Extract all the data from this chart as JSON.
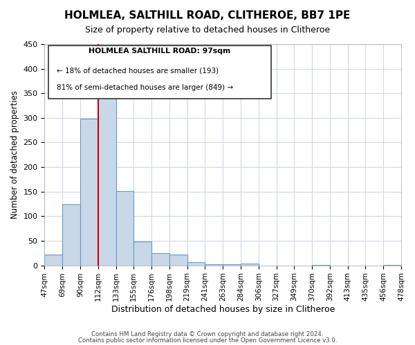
{
  "title": "HOLMLEA, SALTHILL ROAD, CLITHEROE, BB7 1PE",
  "subtitle": "Size of property relative to detached houses in Clitheroe",
  "xlabel": "Distribution of detached houses by size in Clitheroe",
  "ylabel": "Number of detached properties",
  "bin_labels": [
    "47sqm",
    "69sqm",
    "90sqm",
    "112sqm",
    "133sqm",
    "155sqm",
    "176sqm",
    "198sqm",
    "219sqm",
    "241sqm",
    "263sqm",
    "284sqm",
    "306sqm",
    "327sqm",
    "349sqm",
    "370sqm",
    "392sqm",
    "413sqm",
    "435sqm",
    "456sqm",
    "478sqm"
  ],
  "bar_heights": [
    22,
    124,
    298,
    354,
    151,
    48,
    24,
    22,
    7,
    2,
    2,
    3,
    0,
    0,
    0,
    1,
    0,
    0,
    0,
    1
  ],
  "bar_color": "#c8d8e8",
  "bar_edge_color": "#6699cc",
  "vline_x": 2.5,
  "vline_color": "#cc0000",
  "ylim": [
    0,
    450
  ],
  "yticks": [
    0,
    50,
    100,
    150,
    200,
    250,
    300,
    350,
    400,
    450
  ],
  "annotation_title": "HOLMLEA SALTHILL ROAD: 97sqm",
  "annotation_line1": "← 18% of detached houses are smaller (193)",
  "annotation_line2": "81% of semi-detached houses are larger (849) →",
  "footer_line1": "Contains HM Land Registry data © Crown copyright and database right 2024.",
  "footer_line2": "Contains public sector information licensed under the Open Government Licence v3.0.",
  "background_color": "#ffffff",
  "grid_color": "#d0d8e8"
}
